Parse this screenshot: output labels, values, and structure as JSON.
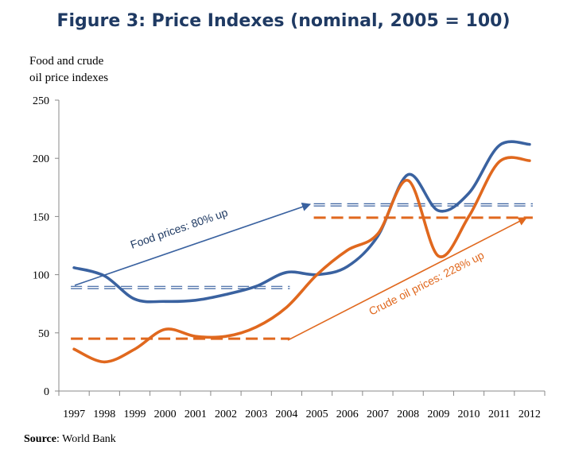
{
  "title": "Figure 3: Price Indexes (nominal, 2005 = 100)",
  "ylabel_line1": "Food and crude",
  "ylabel_line2": "oil price indexes",
  "source_label": "Source",
  "source_text": ": World Bank",
  "colors": {
    "food": "#3a62a0",
    "oil": "#e0681e",
    "food_ref": "#3a62a0",
    "oil_ref": "#e0681e"
  },
  "chart_data": {
    "type": "line",
    "title": "Figure 3: Price Indexes (nominal, 2005 = 100)",
    "ylabel": "Food and crude oil price indexes",
    "xlabel": "",
    "ylim": [
      0,
      250
    ],
    "yticks": [
      0,
      50,
      100,
      150,
      200,
      250
    ],
    "categories": [
      "1997",
      "1998",
      "1999",
      "2000",
      "2001",
      "2002",
      "2003",
      "2004",
      "2005",
      "2006",
      "2007",
      "2008",
      "2009",
      "2010",
      "2011",
      "2012"
    ],
    "series": [
      {
        "name": "Food",
        "values": [
          106,
          99,
          79,
          77,
          78,
          83,
          90,
          102,
          100,
          107,
          133,
          186,
          155,
          170,
          211,
          212
        ]
      },
      {
        "name": "Crude oil",
        "values": [
          36,
          25,
          36,
          53,
          47,
          47,
          55,
          72,
          100,
          121,
          135,
          181,
          116,
          150,
          197,
          198
        ]
      }
    ],
    "reference_lines": [
      {
        "series": "Food",
        "y": 89,
        "x_from": "1997",
        "x_to": "2004"
      },
      {
        "series": "Food",
        "y": 160,
        "x_from": "2005",
        "x_to": "2012"
      },
      {
        "series": "Crude oil",
        "y": 45,
        "x_from": "1997",
        "x_to": "2004"
      },
      {
        "series": "Crude oil",
        "y": 149,
        "x_from": "2005",
        "x_to": "2012"
      }
    ],
    "annotations": [
      {
        "text": "Food prices: 80% up",
        "series": "Food"
      },
      {
        "text": "Crude oil prices: 228% up",
        "series": "Crude oil"
      }
    ],
    "grid": false
  }
}
